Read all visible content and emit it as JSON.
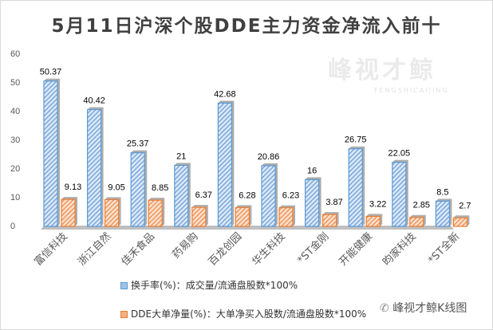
{
  "chart_data": {
    "type": "bar",
    "title": "5月11日沪深个股DDE主力资金净流入前十",
    "categories": [
      "富信科技",
      "浙江自然",
      "佳禾食品",
      "药易购",
      "百龙创园",
      "华生科技",
      "*ST金刚",
      "开能健康",
      "昀家科技",
      "*ST全新"
    ],
    "series": [
      {
        "name": "换手率(%)：成交量/流通盘股数*100%",
        "values": [
          50.37,
          40.42,
          25.37,
          21,
          42.68,
          20.86,
          16,
          26.75,
          22.05,
          8.5
        ],
        "color": "#5b9bd5"
      },
      {
        "name": "DDE大单净量(%)：大单净买入股数/流通盘股数*100%",
        "values": [
          9.13,
          9.05,
          8.85,
          6.37,
          6.28,
          6.23,
          3.87,
          3.22,
          2.85,
          2.7
        ],
        "color": "#ed7d31"
      }
    ],
    "ylim": [
      0,
      60
    ],
    "yticks": [
      0,
      10,
      20,
      30,
      40,
      50,
      60
    ],
    "grid": false,
    "legend_position": "bottom"
  },
  "watermark": {
    "text": "峰视才鲸",
    "subtext": "FENGSHICAIJING"
  },
  "brand": {
    "text": "峰视才鲸K线图",
    "icon": "wechat-icon"
  }
}
